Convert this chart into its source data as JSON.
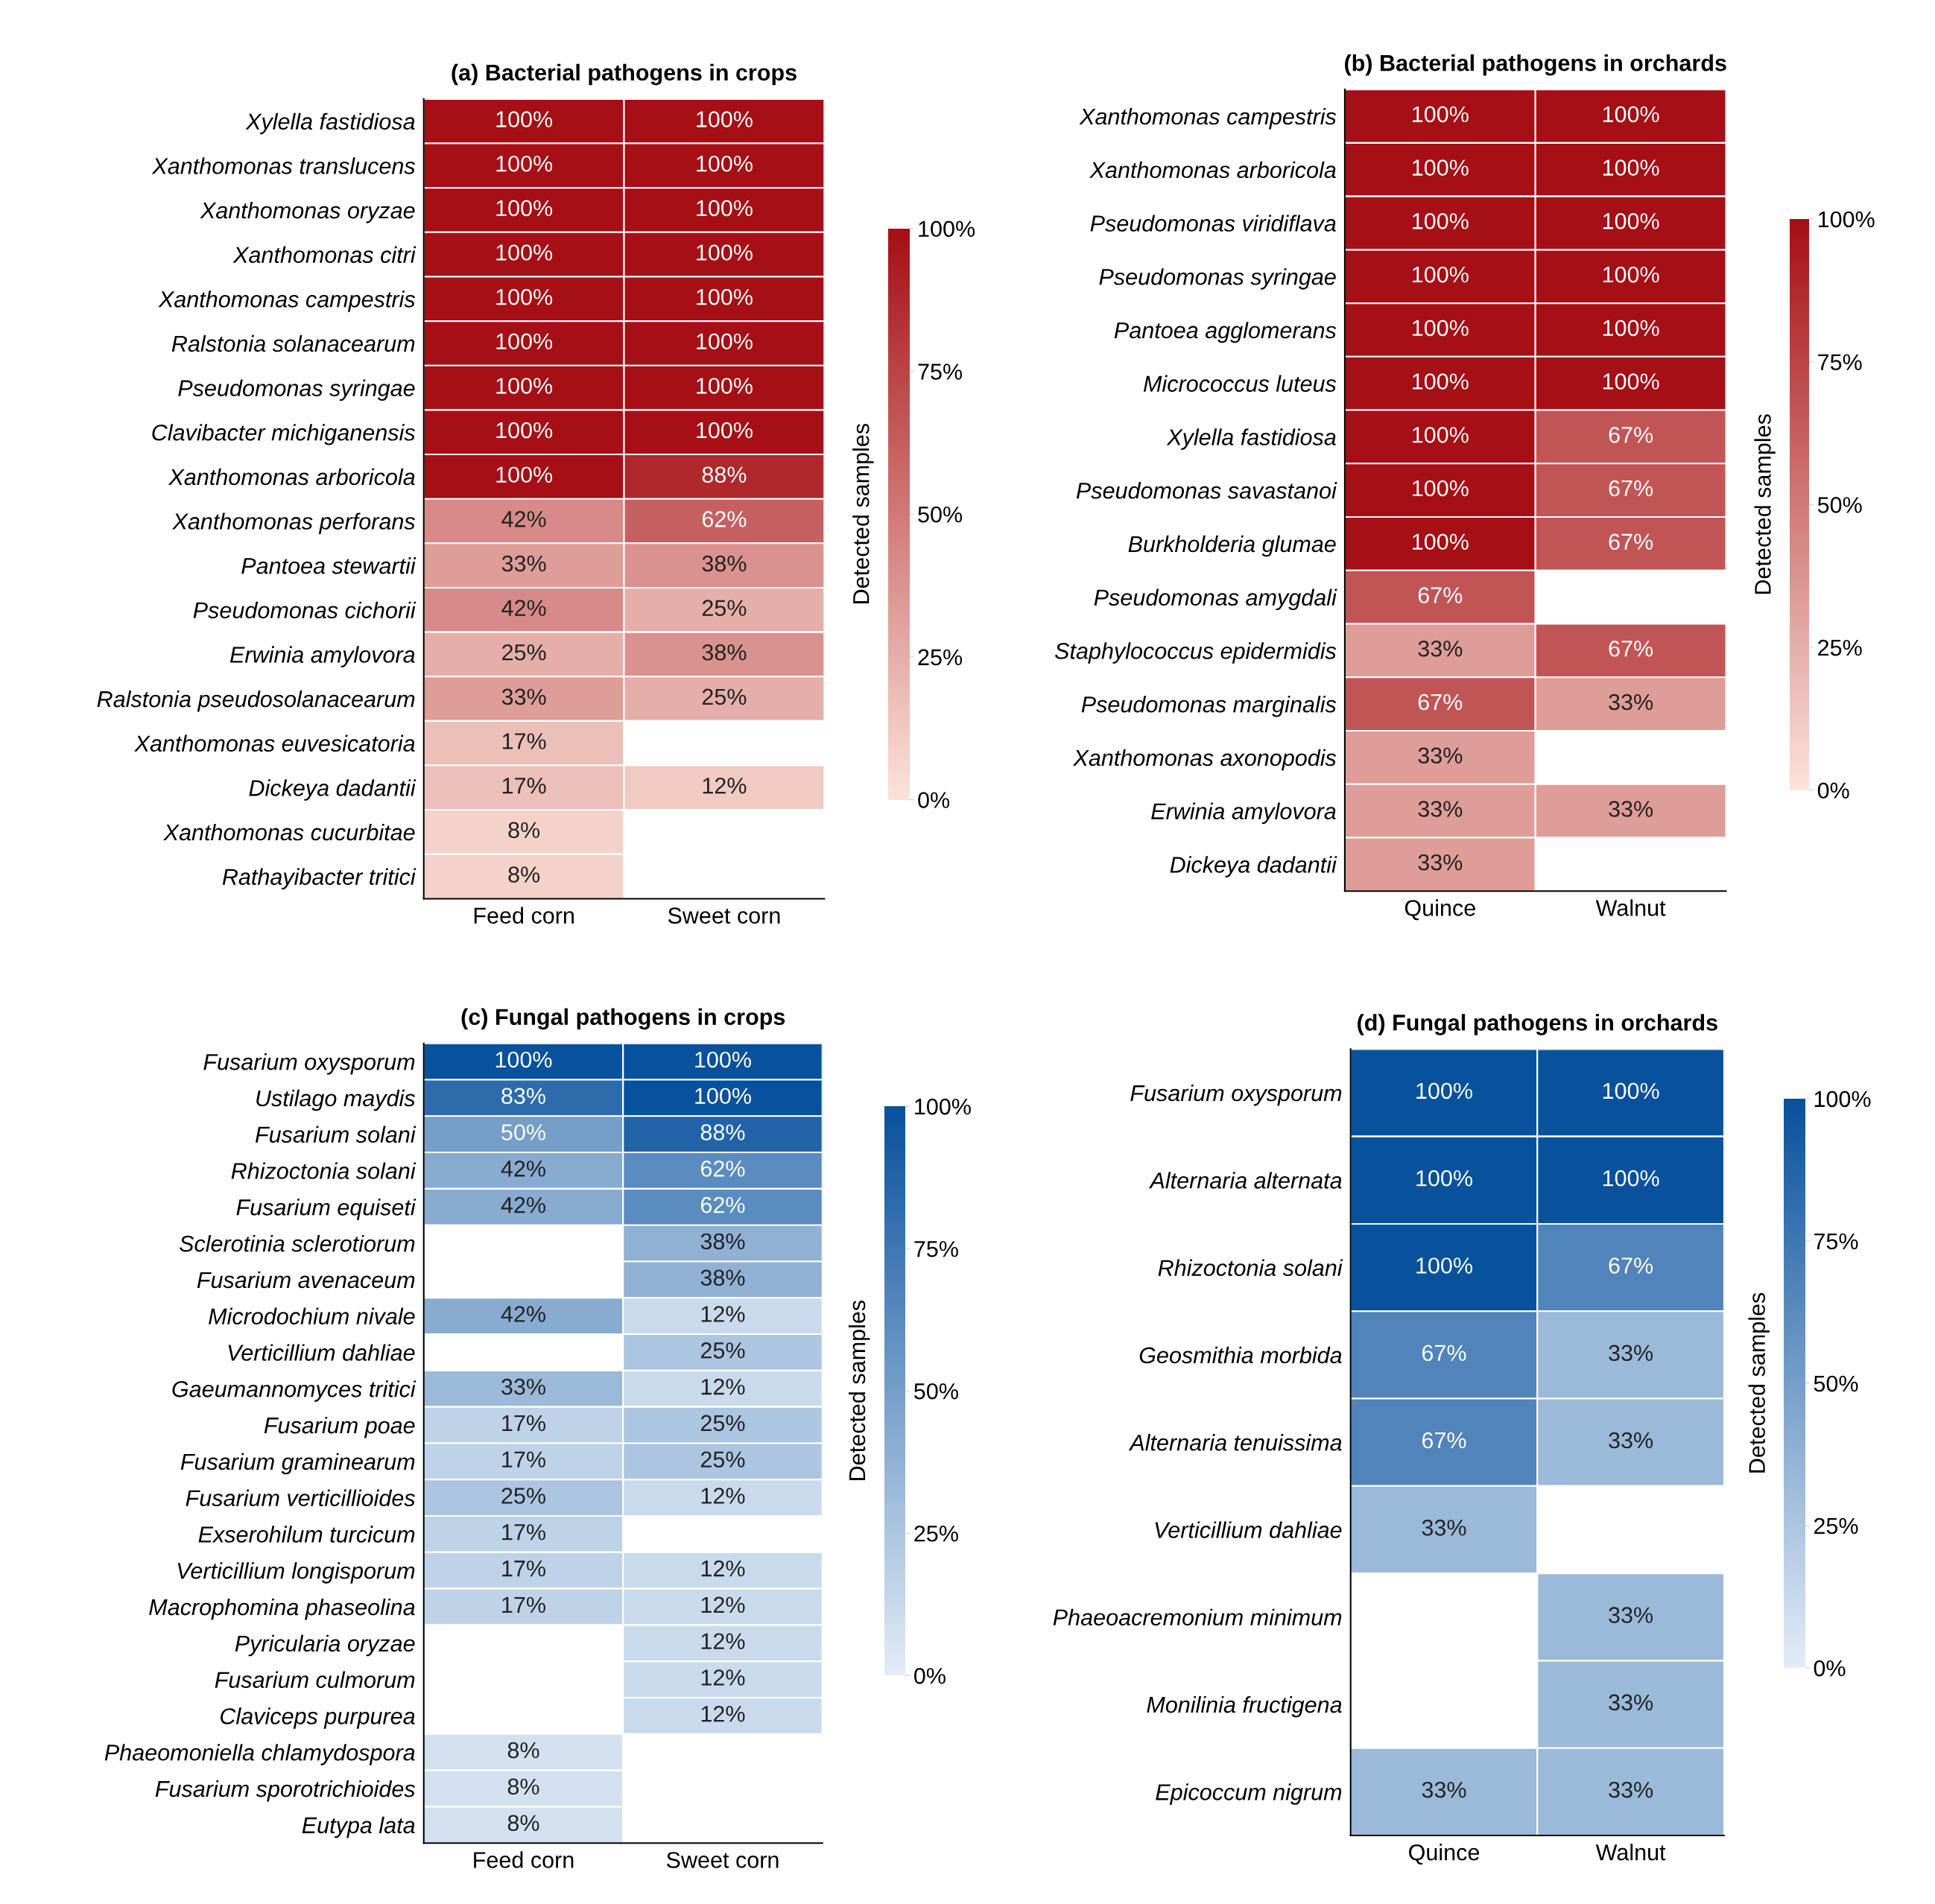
{
  "chart_data": [
    {
      "type": "heatmap",
      "title": "(a) Bacterial pathogens in crops",
      "clabel": "Detected samples",
      "colors": [
        "#fbe3d9",
        "#a50f15"
      ],
      "categories": [
        "Feed corn",
        "Sweet corn"
      ],
      "y_categories": [
        "Xylella fastidiosa",
        "Xanthomonas translucens",
        "Xanthomonas oryzae",
        "Xanthomonas citri",
        "Xanthomonas campestris",
        "Ralstonia solanacearum",
        "Pseudomonas syringae",
        "Clavibacter michiganensis",
        "Xanthomonas arboricola",
        "Xanthomonas perforans",
        "Pantoea stewartii",
        "Pseudomonas cichorii",
        "Erwinia amylovora",
        "Ralstonia pseudosolanacearum",
        "Xanthomonas euvesicatoria",
        "Dickeya dadantii",
        "Xanthomonas cucurbitae",
        "Rathayibacter tritici"
      ],
      "cells": [
        [
          100,
          100
        ],
        [
          100,
          100
        ],
        [
          100,
          100
        ],
        [
          100,
          100
        ],
        [
          100,
          100
        ],
        [
          100,
          100
        ],
        [
          100,
          100
        ],
        [
          100,
          100
        ],
        [
          100,
          88
        ],
        [
          42,
          62
        ],
        [
          33,
          38
        ],
        [
          42,
          25
        ],
        [
          25,
          38
        ],
        [
          33,
          25
        ],
        [
          17,
          null
        ],
        [
          17,
          12
        ],
        [
          8,
          null
        ],
        [
          8,
          null
        ]
      ],
      "cell_labels": [
        [
          "100%",
          "100%"
        ],
        [
          "100%",
          "100%"
        ],
        [
          "100%",
          "100%"
        ],
        [
          "100%",
          "100%"
        ],
        [
          "100%",
          "100%"
        ],
        [
          "100%",
          "100%"
        ],
        [
          "100%",
          "100%"
        ],
        [
          "100%",
          "100%"
        ],
        [
          "100%",
          "88%"
        ],
        [
          "42%",
          "62%"
        ],
        [
          "33%",
          "38%"
        ],
        [
          "42%",
          "25%"
        ],
        [
          "25%",
          "38%"
        ],
        [
          "33%",
          "25%"
        ],
        [
          "17%",
          null
        ],
        [
          "17%",
          "12%"
        ],
        [
          "8%",
          null
        ],
        [
          "8%",
          null
        ]
      ],
      "clim": [
        0,
        100
      ],
      "cticks": [
        {
          "value": 0,
          "label": "0%"
        },
        {
          "value": 25,
          "label": "25%"
        },
        {
          "value": 50,
          "label": "50%"
        },
        {
          "value": 75,
          "label": "75%"
        },
        {
          "value": 100,
          "label": "100%"
        }
      ]
    },
    {
      "type": "heatmap",
      "title": "(b) Bacterial pathogens in orchards",
      "clabel": "Detected samples",
      "colors": [
        "#fbe3d9",
        "#a50f15"
      ],
      "categories": [
        "Quince",
        "Walnut"
      ],
      "y_categories": [
        "Xanthomonas campestris",
        "Xanthomonas arboricola",
        "Pseudomonas viridiflava",
        "Pseudomonas syringae",
        "Pantoea agglomerans",
        "Micrococcus luteus",
        "Xylella fastidiosa",
        "Pseudomonas savastanoi",
        "Burkholderia glumae",
        "Pseudomonas amygdali",
        "Staphylococcus epidermidis",
        "Pseudomonas marginalis",
        "Xanthomonas axonopodis",
        "Erwinia amylovora",
        "Dickeya dadantii"
      ],
      "cells": [
        [
          100,
          100
        ],
        [
          100,
          100
        ],
        [
          100,
          100
        ],
        [
          100,
          100
        ],
        [
          100,
          100
        ],
        [
          100,
          100
        ],
        [
          100,
          67
        ],
        [
          100,
          67
        ],
        [
          100,
          67
        ],
        [
          67,
          null
        ],
        [
          33,
          67
        ],
        [
          67,
          33
        ],
        [
          33,
          null
        ],
        [
          33,
          33
        ],
        [
          33,
          null
        ]
      ],
      "cell_labels": [
        [
          "100%",
          "100%"
        ],
        [
          "100%",
          "100%"
        ],
        [
          "100%",
          "100%"
        ],
        [
          "100%",
          "100%"
        ],
        [
          "100%",
          "100%"
        ],
        [
          "100%",
          "100%"
        ],
        [
          "100%",
          "67%"
        ],
        [
          "100%",
          "67%"
        ],
        [
          "100%",
          "67%"
        ],
        [
          "67%",
          null
        ],
        [
          "33%",
          "67%"
        ],
        [
          "67%",
          "33%"
        ],
        [
          "33%",
          null
        ],
        [
          "33%",
          "33%"
        ],
        [
          "33%",
          null
        ]
      ],
      "clim": [
        0,
        100
      ],
      "cticks": [
        {
          "value": 0,
          "label": "0%"
        },
        {
          "value": 25,
          "label": "25%"
        },
        {
          "value": 50,
          "label": "50%"
        },
        {
          "value": 75,
          "label": "75%"
        },
        {
          "value": 100,
          "label": "100%"
        }
      ]
    },
    {
      "type": "heatmap",
      "title": "(c) Fungal pathogens in crops",
      "clabel": "Detected samples",
      "colors": [
        "#e3ecf7",
        "#08519c"
      ],
      "categories": [
        "Feed corn",
        "Sweet corn"
      ],
      "y_categories": [
        "Fusarium oxysporum",
        "Ustilago maydis",
        "Fusarium solani",
        "Rhizoctonia solani",
        "Fusarium equiseti",
        "Sclerotinia sclerotiorum",
        "Fusarium avenaceum",
        "Microdochium nivale",
        "Verticillium dahliae",
        "Gaeumannomyces tritici",
        "Fusarium poae",
        "Fusarium graminearum",
        "Fusarium verticillioides",
        "Exserohilum turcicum",
        "Verticillium longisporum",
        "Macrophomina phaseolina",
        "Pyricularia oryzae",
        "Fusarium culmorum",
        "Claviceps purpurea",
        "Phaeomoniella chlamydospora",
        "Fusarium sporotrichioides",
        "Eutypa lata"
      ],
      "cells": [
        [
          100,
          100
        ],
        [
          83,
          100
        ],
        [
          50,
          88
        ],
        [
          42,
          62
        ],
        [
          42,
          62
        ],
        [
          null,
          38
        ],
        [
          null,
          38
        ],
        [
          42,
          12
        ],
        [
          null,
          25
        ],
        [
          33,
          12
        ],
        [
          17,
          25
        ],
        [
          17,
          25
        ],
        [
          25,
          12
        ],
        [
          17,
          null
        ],
        [
          17,
          12
        ],
        [
          17,
          12
        ],
        [
          null,
          12
        ],
        [
          null,
          12
        ],
        [
          null,
          12
        ],
        [
          8,
          null
        ],
        [
          8,
          null
        ],
        [
          8,
          null
        ]
      ],
      "cell_labels": [
        [
          "100%",
          "100%"
        ],
        [
          "83%",
          "100%"
        ],
        [
          "50%",
          "88%"
        ],
        [
          "42%",
          "62%"
        ],
        [
          "42%",
          "62%"
        ],
        [
          null,
          "38%"
        ],
        [
          null,
          "38%"
        ],
        [
          "42%",
          "12%"
        ],
        [
          null,
          "25%"
        ],
        [
          "33%",
          "12%"
        ],
        [
          "17%",
          "25%"
        ],
        [
          "17%",
          "25%"
        ],
        [
          "25%",
          "12%"
        ],
        [
          "17%",
          null
        ],
        [
          "17%",
          "12%"
        ],
        [
          "17%",
          "12%"
        ],
        [
          null,
          "12%"
        ],
        [
          null,
          "12%"
        ],
        [
          null,
          "12%"
        ],
        [
          "8%",
          null
        ],
        [
          "8%",
          null
        ],
        [
          "8%",
          null
        ]
      ],
      "clim": [
        0,
        100
      ],
      "cticks": [
        {
          "value": 0,
          "label": "0%"
        },
        {
          "value": 25,
          "label": "25%"
        },
        {
          "value": 50,
          "label": "50%"
        },
        {
          "value": 75,
          "label": "75%"
        },
        {
          "value": 100,
          "label": "100%"
        }
      ]
    },
    {
      "type": "heatmap",
      "title": "(d) Fungal pathogens in orchards",
      "clabel": "Detected samples",
      "colors": [
        "#e3ecf7",
        "#08519c"
      ],
      "categories": [
        "Quince",
        "Walnut"
      ],
      "y_categories": [
        "Fusarium oxysporum",
        "Alternaria alternata",
        "Rhizoctonia solani",
        "Geosmithia morbida",
        "Alternaria tenuissima",
        "Verticillium dahliae",
        "Phaeoacremonium minimum",
        "Monilinia fructigena",
        "Epicoccum nigrum"
      ],
      "cells": [
        [
          100,
          100
        ],
        [
          100,
          100
        ],
        [
          100,
          67
        ],
        [
          67,
          33
        ],
        [
          67,
          33
        ],
        [
          33,
          null
        ],
        [
          null,
          33
        ],
        [
          null,
          33
        ],
        [
          33,
          33
        ]
      ],
      "cell_labels": [
        [
          "100%",
          "100%"
        ],
        [
          "100%",
          "100%"
        ],
        [
          "100%",
          "67%"
        ],
        [
          "67%",
          "33%"
        ],
        [
          "67%",
          "33%"
        ],
        [
          "33%",
          null
        ],
        [
          null,
          "33%"
        ],
        [
          null,
          "33%"
        ],
        [
          "33%",
          "33%"
        ]
      ],
      "clim": [
        0,
        100
      ],
      "cticks": [
        {
          "value": 0,
          "label": "0%"
        },
        {
          "value": 25,
          "label": "25%"
        },
        {
          "value": 50,
          "label": "50%"
        },
        {
          "value": 75,
          "label": "75%"
        },
        {
          "value": 100,
          "label": "100%"
        }
      ]
    }
  ]
}
